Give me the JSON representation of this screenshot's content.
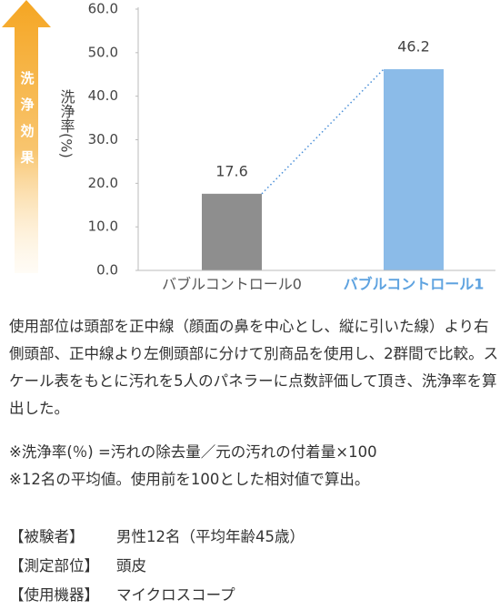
{
  "chart_data": {
    "type": "bar",
    "arrow_label": "洗浄効果",
    "y_axis_label": "洗浄率(%)",
    "categories": [
      "バブルコントロール0",
      "バブルコントロール1"
    ],
    "values": [
      17.6,
      46.2
    ],
    "colors": [
      "#8e8e8e",
      "#8bbbe8"
    ],
    "category_label_colors": [
      "#555555",
      "#5fa3e0"
    ],
    "connector_color": "#4a8fd8",
    "ylim": [
      0,
      60
    ],
    "yticks": [
      {
        "value": 0,
        "label": "0.0"
      },
      {
        "value": 10,
        "label": "10.0"
      },
      {
        "value": 20,
        "label": "20.0"
      },
      {
        "value": 30,
        "label": "30.0"
      },
      {
        "value": 40,
        "label": "40.0"
      },
      {
        "value": 50,
        "label": "50.0"
      },
      {
        "value": 60,
        "label": "60.0"
      }
    ],
    "grid": false
  },
  "description": "使用部位は頭部を正中線（顔面の鼻を中心とし、縦に引いた線）より右側頭部、正中線より左側頭部に分けて別商品を使用し、2群間で比較。スケール表をもとに汚れを5人のパネラーに点数評価して頂き、洗浄率を算出した。",
  "notes": [
    "※洗浄率(％) =汚れの除去量／元の汚れの付着量×100",
    "※12名の平均値。使用前を100とした相対値で算出。"
  ],
  "specs": [
    {
      "label": "【被験者】",
      "value": "男性12名（平均年齢45歳）"
    },
    {
      "label": "【測定部位】",
      "value": "頭皮"
    },
    {
      "label": "【使用機器】",
      "value": "マイクロスコープ"
    }
  ]
}
